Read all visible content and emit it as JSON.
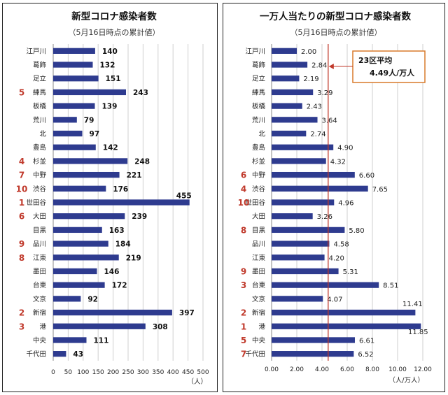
{
  "chart_data": [
    {
      "type": "bar",
      "orientation": "horizontal",
      "title": "新型コロナ感染者数",
      "subtitle": "（5月16日時点の累計値）",
      "xlabel": "（人）",
      "xlim": [
        0,
        500
      ],
      "xticks": [
        "0",
        "50",
        "100",
        "150",
        "200",
        "250",
        "300",
        "350",
        "400",
        "450",
        "500"
      ],
      "grid": true,
      "color": "#2e3b8f",
      "categories": [
        "江戸川",
        "葛飾",
        "足立",
        "練馬",
        "板橋",
        "荒川",
        "北",
        "豊島",
        "杉並",
        "中野",
        "渋谷",
        "世田谷",
        "大田",
        "目黒",
        "品川",
        "江東",
        "墨田",
        "台東",
        "文京",
        "新宿",
        "港",
        "中央",
        "千代田"
      ],
      "ranks": [
        "",
        "",
        "",
        "5",
        "",
        "",
        "",
        "",
        "4",
        "7",
        "10",
        "1",
        "6",
        "",
        "9",
        "8",
        "",
        "",
        "",
        "2",
        "3",
        "",
        ""
      ],
      "values": [
        140,
        132,
        151,
        243,
        139,
        79,
        97,
        142,
        248,
        221,
        176,
        455,
        239,
        163,
        184,
        219,
        146,
        172,
        92,
        397,
        308,
        111,
        43
      ],
      "labels": [
        "140",
        "132",
        "151",
        "243",
        "139",
        "79",
        "97",
        "142",
        "248",
        "221",
        "176",
        "455",
        "239",
        "163",
        "184",
        "219",
        "146",
        "172",
        "92",
        "397",
        "308",
        "111",
        "43"
      ]
    },
    {
      "type": "bar",
      "orientation": "horizontal",
      "title": "一万人当たりの新型コロナ感染者数",
      "subtitle": "（5月16日時点の累計値）",
      "xlabel": "（人/万人）",
      "xlim": [
        0,
        12
      ],
      "xticks": [
        "0.00",
        "2.00",
        "4.00",
        "6.00",
        "8.00",
        "10.00",
        "12.00"
      ],
      "grid": true,
      "color": "#2e3b8f",
      "categories": [
        "江戸川",
        "葛飾",
        "足立",
        "練馬",
        "板橋",
        "荒川",
        "北",
        "豊島",
        "杉並",
        "中野",
        "渋谷",
        "世田谷",
        "大田",
        "目黒",
        "品川",
        "江東",
        "墨田",
        "台東",
        "文京",
        "新宿",
        "港",
        "中央",
        "千代田"
      ],
      "ranks": [
        "",
        "",
        "",
        "",
        "",
        "",
        "",
        "",
        "",
        "6",
        "4",
        "10",
        "",
        "8",
        "",
        "",
        "9",
        "3",
        "",
        "2",
        "1",
        "5",
        "7"
      ],
      "values": [
        2.0,
        2.84,
        2.19,
        3.29,
        2.43,
        3.64,
        2.74,
        4.9,
        4.32,
        6.6,
        7.65,
        4.96,
        3.26,
        5.8,
        4.58,
        4.2,
        5.31,
        8.51,
        4.07,
        11.41,
        11.85,
        6.61,
        6.52
      ],
      "labels": [
        "2.00",
        "2.84",
        "2.19",
        "3.29",
        "2.43",
        "3.64",
        "2.74",
        "4.90",
        "4.32",
        "6.60",
        "7.65",
        "4.96",
        "3.26",
        "5.80",
        "4.58",
        "4.20",
        "5.31",
        "8.51",
        "4.07",
        "11.41",
        "11.85",
        "6.61",
        "6.52"
      ],
      "reference_line": {
        "value": 4.49,
        "color": "#c0392b",
        "label_line1": "23区平均",
        "label_line2": "4.49人/万人"
      }
    }
  ]
}
